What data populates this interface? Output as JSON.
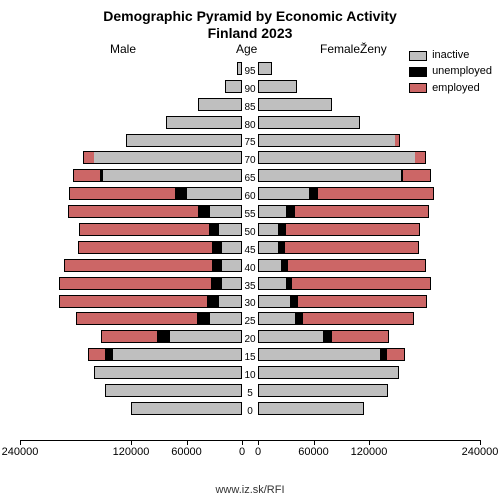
{
  "chart": {
    "type": "population-pyramid",
    "title_line1": "Demographic Pyramid by Economic Activity",
    "title_line2": "Finland 2023",
    "title_fontsize": 14,
    "axis_fontsize": 11,
    "tick_fontsize": 10,
    "labels": {
      "male": "Male",
      "age": "Age",
      "female": "FemaleŽeny"
    },
    "legend": [
      {
        "label": "inactive",
        "color": "#bfbfbf"
      },
      {
        "label": "unemployed",
        "color": "#000000"
      },
      {
        "label": "employed",
        "color": "#cc6666"
      }
    ],
    "colors": {
      "inactive": "#bfbfbf",
      "unemployed": "#000000",
      "employed": "#cc6666",
      "background": "#ffffff",
      "border": "#000000"
    },
    "x_axis": {
      "max": 240000,
      "ticks_left": [
        240000,
        120000,
        60000,
        0
      ],
      "ticks_right": [
        0,
        60000,
        120000,
        240000
      ]
    },
    "rows": [
      {
        "age": 95,
        "male": {
          "inactive": 5000,
          "unemployed": 0,
          "employed": 0
        },
        "female": {
          "inactive": 15000,
          "unemployed": 0,
          "employed": 0
        }
      },
      {
        "age": 90,
        "male": {
          "inactive": 18000,
          "unemployed": 0,
          "employed": 0
        },
        "female": {
          "inactive": 42000,
          "unemployed": 0,
          "employed": 0
        }
      },
      {
        "age": 85,
        "male": {
          "inactive": 48000,
          "unemployed": 0,
          "employed": 0
        },
        "female": {
          "inactive": 80000,
          "unemployed": 0,
          "employed": 0
        }
      },
      {
        "age": 80,
        "male": {
          "inactive": 82000,
          "unemployed": 0,
          "employed": 0
        },
        "female": {
          "inactive": 110000,
          "unemployed": 0,
          "employed": 0
        }
      },
      {
        "age": 75,
        "male": {
          "inactive": 125000,
          "unemployed": 0,
          "employed": 0
        },
        "female": {
          "inactive": 148000,
          "unemployed": 0,
          "employed": 6000
        }
      },
      {
        "age": 70,
        "male": {
          "inactive": 160000,
          "unemployed": 0,
          "employed": 12000
        },
        "female": {
          "inactive": 170000,
          "unemployed": 0,
          "employed": 12000
        }
      },
      {
        "age": 65,
        "male": {
          "inactive": 150000,
          "unemployed": 3000,
          "employed": 30000
        },
        "female": {
          "inactive": 155000,
          "unemployed": 2000,
          "employed": 30000
        }
      },
      {
        "age": 60,
        "male": {
          "inactive": 60000,
          "unemployed": 12000,
          "employed": 115000
        },
        "female": {
          "inactive": 55000,
          "unemployed": 10000,
          "employed": 125000
        }
      },
      {
        "age": 55,
        "male": {
          "inactive": 35000,
          "unemployed": 13000,
          "employed": 140000
        },
        "female": {
          "inactive": 30000,
          "unemployed": 10000,
          "employed": 145000
        }
      },
      {
        "age": 50,
        "male": {
          "inactive": 25000,
          "unemployed": 11000,
          "employed": 140000
        },
        "female": {
          "inactive": 22000,
          "unemployed": 8000,
          "employed": 145000
        }
      },
      {
        "age": 45,
        "male": {
          "inactive": 22000,
          "unemployed": 10000,
          "employed": 145000
        },
        "female": {
          "inactive": 22000,
          "unemployed": 7000,
          "employed": 145000
        }
      },
      {
        "age": 40,
        "male": {
          "inactive": 22000,
          "unemployed": 10000,
          "employed": 160000
        },
        "female": {
          "inactive": 25000,
          "unemployed": 7000,
          "employed": 150000
        }
      },
      {
        "age": 35,
        "male": {
          "inactive": 22000,
          "unemployed": 11000,
          "employed": 165000
        },
        "female": {
          "inactive": 30000,
          "unemployed": 7000,
          "employed": 150000
        }
      },
      {
        "age": 30,
        "male": {
          "inactive": 25000,
          "unemployed": 13000,
          "employed": 160000
        },
        "female": {
          "inactive": 35000,
          "unemployed": 8000,
          "employed": 140000
        }
      },
      {
        "age": 25,
        "male": {
          "inactive": 35000,
          "unemployed": 14000,
          "employed": 130000
        },
        "female": {
          "inactive": 40000,
          "unemployed": 9000,
          "employed": 120000
        }
      },
      {
        "age": 20,
        "male": {
          "inactive": 78000,
          "unemployed": 14000,
          "employed": 60000
        },
        "female": {
          "inactive": 70000,
          "unemployed": 10000,
          "employed": 62000
        }
      },
      {
        "age": 15,
        "male": {
          "inactive": 140000,
          "unemployed": 8000,
          "employed": 18000
        },
        "female": {
          "inactive": 132000,
          "unemployed": 7000,
          "employed": 20000
        }
      },
      {
        "age": 10,
        "male": {
          "inactive": 160000,
          "unemployed": 0,
          "employed": 0
        },
        "female": {
          "inactive": 152000,
          "unemployed": 0,
          "employed": 0
        }
      },
      {
        "age": 5,
        "male": {
          "inactive": 148000,
          "unemployed": 0,
          "employed": 0
        },
        "female": {
          "inactive": 140000,
          "unemployed": 0,
          "employed": 0
        }
      },
      {
        "age": 0,
        "male": {
          "inactive": 120000,
          "unemployed": 0,
          "employed": 0
        },
        "female": {
          "inactive": 115000,
          "unemployed": 0,
          "employed": 0
        }
      }
    ],
    "footer_url": "www.iz.sk/RFI"
  }
}
